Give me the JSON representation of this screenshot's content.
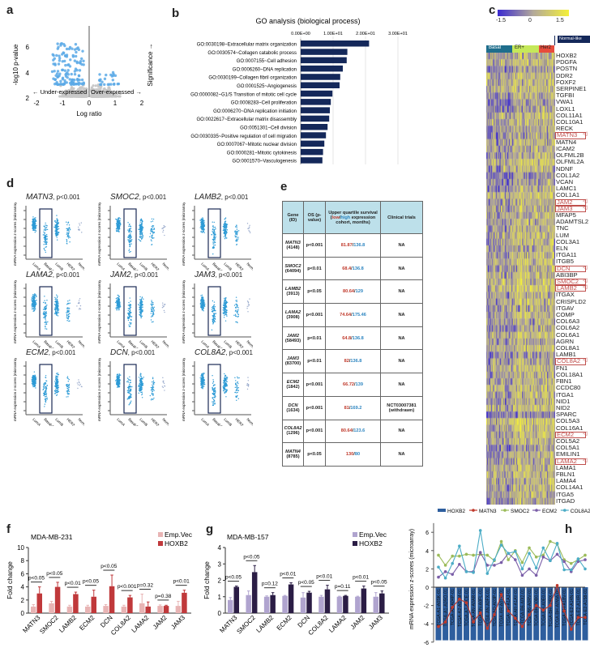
{
  "panels": {
    "a": "a",
    "b": "b",
    "c": "c",
    "d": "d",
    "e": "e",
    "f": "f",
    "g": "g",
    "h": "h"
  },
  "a": {
    "ylabel": "-log10 p-value",
    "xlabel": "Log ratio",
    "under": "← Under-expressed",
    "over": "Over-expressed →",
    "significance": "Significance →",
    "xticks": [
      "-2",
      "-1",
      "0",
      "1",
      "2"
    ],
    "yticks": [
      "2",
      "4",
      "6"
    ],
    "colors": {
      "significant": "#5aa9e6",
      "other": "#c8c8c8"
    }
  },
  "chart_data": [
    {
      "panel": "b",
      "type": "bar",
      "orientation": "horizontal",
      "title": "GO analysis (biological process)",
      "xticks": [
        "0.00E+00",
        "1.00E+01",
        "2.00E+01",
        "3.00E+01"
      ],
      "xlim": [
        0,
        30
      ],
      "color": "#14285a",
      "categories": [
        "GO:0030198~Extracellular matrix organization",
        "GO:0030574~Collagen catabolic process",
        "GO:0007155~Cell adhesion",
        "GO:0006260~DNA replication",
        "GO:0030199~Collagen fibril organization",
        "GO:0001525~Angiogenesis",
        "GO:0000082~G1/S Transition of mitotic cell cycle",
        "GO:0008283~Cell proliferation",
        "GO:0006270~DNA replication initiation",
        "GO:0022617~Extracellular matrix disassembly",
        "GO:0051301~Cell division",
        "GO:0030335~Positive regulation of cell migration",
        "GO:0007067~Mitotic nuclear division",
        "GO:0000281~Mitotic cytokinesis",
        "GO:0001570~Vasculogenesis"
      ],
      "values": [
        21.1,
        14.4,
        14.2,
        13.0,
        12.2,
        12.0,
        9.8,
        9.3,
        9.0,
        8.8,
        8.3,
        7.8,
        7.3,
        6.9,
        6.7
      ]
    },
    {
      "panel": "f",
      "type": "bar",
      "title": "MDA-MB-231",
      "ylabel": "Fold change",
      "ylim": [
        0,
        10
      ],
      "yticks": [
        0,
        2,
        4,
        6,
        8,
        10
      ],
      "categories": [
        "MATN3",
        "SMOC2",
        "LAMB2",
        "ECM2",
        "DCN",
        "COL8A2",
        "LAMA2",
        "JAM2",
        "JAM3"
      ],
      "series": [
        {
          "name": "Emp.Vec",
          "color": "#e8b4b4",
          "values": [
            1.0,
            1.5,
            1.0,
            1.0,
            1.1,
            1.0,
            1.5,
            1.1,
            1.1
          ],
          "err": [
            0.3,
            0.3,
            0.2,
            0.2,
            0.2,
            0.2,
            1.4,
            0.15,
            0.7
          ]
        },
        {
          "name": "HOXB2",
          "color": "#c0393b",
          "values": [
            3.0,
            4.0,
            2.9,
            2.5,
            4.1,
            2.4,
            1.0,
            1.1,
            3.1
          ],
          "err": [
            1.0,
            0.7,
            0.3,
            1.0,
            1.7,
            0.3,
            0.7,
            0.1,
            0.4
          ]
        }
      ],
      "pvalues": [
        "p<0.05",
        "p<0.05",
        "p<0.01",
        "p<0.05",
        "p<0.05",
        "p<0.001",
        "p=0.32",
        "p=0.38",
        "p<0.01"
      ]
    },
    {
      "panel": "g",
      "type": "bar",
      "title": "MDA-MB-157",
      "ylabel": "Fold change",
      "ylim": [
        0,
        4
      ],
      "yticks": [
        0,
        1,
        2,
        3,
        4
      ],
      "categories": [
        "MATN3",
        "SMOC2",
        "LAMB2",
        "ECM2",
        "DCN",
        "COL8A2",
        "LAMA2",
        "JAM2",
        "JAM3"
      ],
      "series": [
        {
          "name": "Emp.Vec",
          "color": "#b0a4cf",
          "values": [
            0.8,
            1.1,
            1.0,
            1.05,
            0.95,
            1.0,
            1.0,
            1.0,
            1.0
          ],
          "err": [
            0.15,
            0.25,
            0.05,
            0.03,
            0.3,
            0.08,
            0.03,
            0.03,
            0.25
          ]
        },
        {
          "name": "HOXB2",
          "color": "#2b1d45",
          "values": [
            1.6,
            2.5,
            1.1,
            1.75,
            1.25,
            1.45,
            1.05,
            1.5,
            1.2
          ],
          "err": [
            0.05,
            0.4,
            0.15,
            0.1,
            0.08,
            0.25,
            0.03,
            0.15,
            0.15
          ]
        }
      ],
      "pvalues": [
        "p<0.05",
        "p<0.05",
        "p=0.12",
        "p<0.01",
        "p<0.05",
        "p<0.01",
        "p=0.11",
        "p<0.01",
        "p<0.05"
      ]
    },
    {
      "panel": "h",
      "type": "line",
      "ylabel": "mRNA expression z-scores (microarray)",
      "ylim": [
        -6,
        7
      ],
      "yticks": [
        -6,
        -4,
        -2,
        0,
        2,
        4,
        6
      ],
      "categories": [
        "TCGA-A1-A0SK-01",
        "TCGA-A1-A0SO-01",
        "TCGA-A2-A04P-01",
        "TCGA-A2-A0YM-01",
        "TCGA-A7-A0CE-01",
        "TCGA-AN-A0AR-01",
        "TCGA-AN-A0FL-01",
        "TCGA-AN-A0FX-01",
        "TCGA-AO-A03P-01",
        "TCGA-AR-A0TU-01",
        "TCGA-AR-A1AJ-01",
        "TCGA-AR-A1AY-01",
        "TCGA-B6-A0I2-01",
        "TCGA-B6-A0RV-01",
        "TCGA-BH-A0B0-01",
        "TCGA-BH-A0E0-01",
        "TCGA-BH-A0RX-01",
        "TCGA-BH-A0WA-01",
        "TCGA-BH-A18V-01",
        "TCGA-E2-A14N-01",
        "TCGA-E2-A14R-01",
        "TCGA-E2-A158-01"
      ],
      "series": [
        {
          "name": "HOXB2",
          "color": "#2e5e9e",
          "kind": "bar",
          "values": [
            -5.8,
            -5.8,
            -5.8,
            -5.8,
            -5.8,
            -5.8,
            -5.8,
            -5.8,
            -5.8,
            -5.8,
            -5.8,
            -5.8,
            -5.8,
            -5.8,
            -5.8,
            -5.8,
            -5.8,
            -5.8,
            -5.8,
            -5.8,
            -5.8,
            -5.8
          ]
        },
        {
          "name": "MATN3",
          "color": "#c0392b",
          "values": [
            -4.3,
            -3.8,
            -2.2,
            -1.3,
            -1.7,
            -3.8,
            -2.8,
            -4.5,
            -3.0,
            -0.8,
            -2.6,
            -3.4,
            -4.3,
            -3.0,
            -2.0,
            -2.5,
            -2.0,
            0.2,
            -2.6,
            -4.6,
            -3.3,
            -3.3
          ]
        },
        {
          "name": "SMOC2",
          "color": "#9bbb59",
          "values": [
            3.5,
            2.4,
            3.4,
            3.4,
            3.6,
            3.5,
            3.6,
            3.5,
            2.9,
            5.0,
            3.0,
            4.0,
            2.7,
            4.3,
            3.3,
            3.5,
            5.0,
            4.7,
            3.0,
            2.6,
            3.0,
            3.5
          ]
        },
        {
          "name": "ECM2",
          "color": "#7a5ea8",
          "values": [
            1.1,
            1.7,
            1.4,
            2.5,
            1.7,
            1.7,
            3.8,
            2.4,
            2.4,
            2.7,
            3.7,
            3.0,
            1.3,
            2.0,
            1.3,
            3.3,
            2.9,
            3.6,
            2.8,
            1.7,
            2.8,
            3.0
          ]
        },
        {
          "name": "COL8A2",
          "color": "#4bacc6",
          "values": [
            2.2,
            1.0,
            2.6,
            4.5,
            1.7,
            1.6,
            6.2,
            1.5,
            3.0,
            4.6,
            3.7,
            3.9,
            2.0,
            3.7,
            2.1,
            4.3,
            2.9,
            4.8,
            1.9,
            1.9,
            3.1,
            2.0
          ]
        }
      ]
    }
  ],
  "c": {
    "colorbar": [
      "-1.5",
      "0",
      "1.5"
    ],
    "groups": [
      {
        "name": "Basal",
        "color": "#1f6e8c"
      },
      {
        "name": "ER+",
        "color": "#c5e85a"
      },
      {
        "name": "Her2",
        "color": "#e74c3c"
      },
      {
        "name": "Normal-like",
        "color": "#14285a"
      }
    ],
    "colors": {
      "low": "#3a2ad0",
      "mid": "#b3a99a",
      "high": "#f4f03a"
    },
    "genes": [
      "HOXB2",
      "PDGFA",
      "POSTN",
      "DDR2",
      "FOXF2",
      "SERPINE1",
      "TGFBI",
      "VWA1",
      "LOXL1",
      "COL11A1",
      "COL10A1",
      "RECK",
      "MATN3",
      "MATN4",
      "ICAM2",
      "OLFML2B",
      "OLFML2A",
      "NDNF",
      "COL1A2",
      "VCAN",
      "LAMC1",
      "COL1A1",
      "JAM2",
      "JAM3",
      "MFAP5",
      "ADAMTSL2",
      "TNC",
      "LUM",
      "COL3A1",
      "ELN",
      "ITGA11",
      "ITGB5",
      "DCN",
      "ABI3BP",
      "SMOC2",
      "LAMB2",
      "ITGAX",
      "CRISPLD2",
      "ITGAV",
      "COMP",
      "COL6A3",
      "COL6A2",
      "COL6A1",
      "AGRN",
      "COL8A1",
      "LAMB1",
      "COL8A2",
      "FN1",
      "COL18A1",
      "FBN1",
      "CCDC80",
      "ITGA1",
      "NID1",
      "NID2",
      "SPARC",
      "COL5A3",
      "COL16A1",
      "ECM2",
      "COL5A2",
      "COL5A1",
      "EMILIN1",
      "LAMA2",
      "LAMA1",
      "FBLN1",
      "LAMA4",
      "COL14A1",
      "ITGA5",
      "ITGAD"
    ],
    "highlighted": [
      "MATN3",
      "JAM2",
      "JAM3",
      "DCN",
      "SMOC2",
      "LAMB2",
      "COL8A2",
      "ECM2",
      "LAMA2"
    ],
    "arrow": "◁"
  },
  "d": {
    "ylabel": "mRNA expression z-scores (microarray)",
    "categories": [
      "LumA",
      "Basal-like",
      "LumB",
      "HER2-enriched",
      "Normal-like"
    ],
    "dot_color": "#2e9bd6",
    "plots": [
      {
        "gene": "MATN3",
        "p": ", p<0.001"
      },
      {
        "gene": "SMOC2",
        "p": ", p<0.001"
      },
      {
        "gene": "LAMB2",
        "p": ", p<0.001"
      },
      {
        "gene": "LAMA2",
        "p": ", p<0.001"
      },
      {
        "gene": "JAM2",
        "p": ", p<0.001"
      },
      {
        "gene": "JAM3",
        "p": ", p<0.001"
      },
      {
        "gene": "ECM2",
        "p": ", p<0.001"
      },
      {
        "gene": "DCN",
        "p": ", p<0.001"
      },
      {
        "gene": "COL8A2",
        "p": ", p<0.001"
      }
    ]
  },
  "e": {
    "headers": {
      "gene": "Gene (ID)",
      "os": "OS (p-value)",
      "survival_pre": "Upper quartile survival (",
      "low": "low",
      "slash": "/",
      "high": "high",
      "survival_post": " expression cohort, months)",
      "trials": "Clinical trials"
    },
    "rows": [
      {
        "gene": "MATN3",
        "id": "(4148)",
        "os": "p<0.001",
        "low": "81.87",
        "high": "136.8",
        "trial": "NA"
      },
      {
        "gene": "SMOC2",
        "id": "(64094)",
        "os": "p<0.01",
        "low": "68.4",
        "high": "136.8",
        "trial": "NA"
      },
      {
        "gene": "LAMB2",
        "id": "(3913)",
        "os": "p<0.05",
        "low": "80.64",
        "high": "129",
        "trial": "NA"
      },
      {
        "gene": "LAMA2",
        "id": "(3908)",
        "os": "p<0.001",
        "low": "74.64",
        "high": "175.46",
        "trial": "NA"
      },
      {
        "gene": "JAM2",
        "id": "(58493)",
        "os": "p<0.01",
        "low": "64.8",
        "high": "136.8",
        "trial": "NA"
      },
      {
        "gene": "JAM3",
        "id": "(83700)",
        "os": "p<0.01",
        "low": "82",
        "high": "136.8",
        "trial": "NA"
      },
      {
        "gene": "ECM2",
        "id": "(1842)",
        "os": "p<0.001",
        "low": "66.72",
        "high": "139",
        "trial": "NA"
      },
      {
        "gene": "DCN",
        "id": "(1634)",
        "os": "p<0.001",
        "low": "81",
        "high": "169.2",
        "trial": "NCT03007381 (withdrawn)"
      },
      {
        "gene": "COL8A2",
        "id": "(1296)",
        "os": "p<0.001",
        "low": "80.64",
        "high": "123.6",
        "trial": "NA"
      },
      {
        "gene": "MATN4",
        "id": "(8785)",
        "os": "p<0.05",
        "low": "130",
        "high": "80",
        "trial": "NA"
      }
    ]
  }
}
